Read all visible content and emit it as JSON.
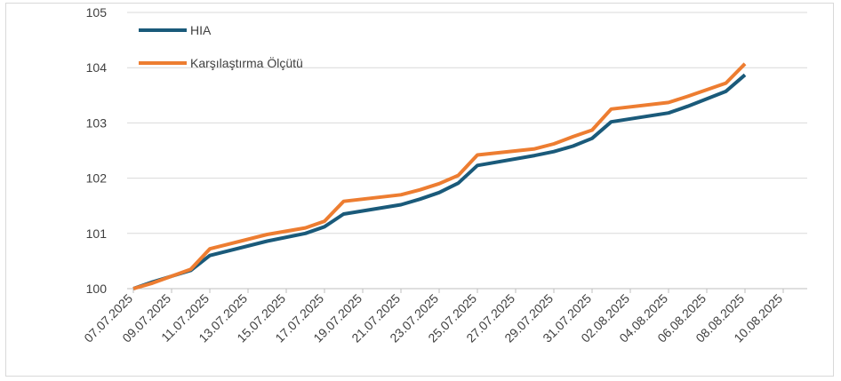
{
  "chart_data": {
    "type": "line",
    "title": "",
    "xlabel": "",
    "ylabel": "",
    "ylim": [
      100,
      105
    ],
    "yticks": [
      100,
      101,
      102,
      103,
      104,
      105
    ],
    "x_ticks": [
      "07.07.2025",
      "09.07.2025",
      "11.07.2025",
      "13.07.2025",
      "15.07.2025",
      "17.07.2025",
      "19.07.2025",
      "21.07.2025",
      "23.07.2025",
      "25.07.2025",
      "27.07.2025",
      "29.07.2025",
      "31.07.2025",
      "02.08.2025",
      "04.08.2025",
      "06.08.2025",
      "08.08.2025",
      "10.08.2025"
    ],
    "grid": true,
    "legend_position": "top-left",
    "series": [
      {
        "name": "HIA",
        "color": "#1a5a7a",
        "points": [
          [
            "07.07.2025",
            100.0
          ],
          [
            "08.07.2025",
            100.12
          ],
          [
            "10.07.2025",
            100.33
          ],
          [
            "11.07.2025",
            100.6
          ],
          [
            "14.07.2025",
            100.86
          ],
          [
            "16.07.2025",
            101.0
          ],
          [
            "17.07.2025",
            101.12
          ],
          [
            "18.07.2025",
            101.35
          ],
          [
            "21.07.2025",
            101.52
          ],
          [
            "22.07.2025",
            101.62
          ],
          [
            "23.07.2025",
            101.74
          ],
          [
            "24.07.2025",
            101.91
          ],
          [
            "25.07.2025",
            102.23
          ],
          [
            "28.07.2025",
            102.41
          ],
          [
            "29.07.2025",
            102.48
          ],
          [
            "30.07.2025",
            102.58
          ],
          [
            "31.07.2025",
            102.72
          ],
          [
            "01.08.2025",
            103.02
          ],
          [
            "04.08.2025",
            103.18
          ],
          [
            "05.08.2025",
            103.3
          ],
          [
            "07.08.2025",
            103.57
          ],
          [
            "08.08.2025",
            103.87
          ]
        ]
      },
      {
        "name": "Karşılaştırma Ölçütü",
        "color": "#ed7d31",
        "points": [
          [
            "07.07.2025",
            100.0
          ],
          [
            "08.07.2025",
            100.1
          ],
          [
            "10.07.2025",
            100.35
          ],
          [
            "11.07.2025",
            100.72
          ],
          [
            "14.07.2025",
            100.98
          ],
          [
            "16.07.2025",
            101.1
          ],
          [
            "17.07.2025",
            101.22
          ],
          [
            "18.07.2025",
            101.58
          ],
          [
            "21.07.2025",
            101.7
          ],
          [
            "22.07.2025",
            101.79
          ],
          [
            "23.07.2025",
            101.9
          ],
          [
            "24.07.2025",
            102.05
          ],
          [
            "25.07.2025",
            102.42
          ],
          [
            "28.07.2025",
            102.53
          ],
          [
            "29.07.2025",
            102.62
          ],
          [
            "30.07.2025",
            102.75
          ],
          [
            "31.07.2025",
            102.87
          ],
          [
            "01.08.2025",
            103.25
          ],
          [
            "04.08.2025",
            103.37
          ],
          [
            "05.08.2025",
            103.48
          ],
          [
            "07.08.2025",
            103.72
          ],
          [
            "08.08.2025",
            104.07
          ]
        ]
      }
    ]
  }
}
